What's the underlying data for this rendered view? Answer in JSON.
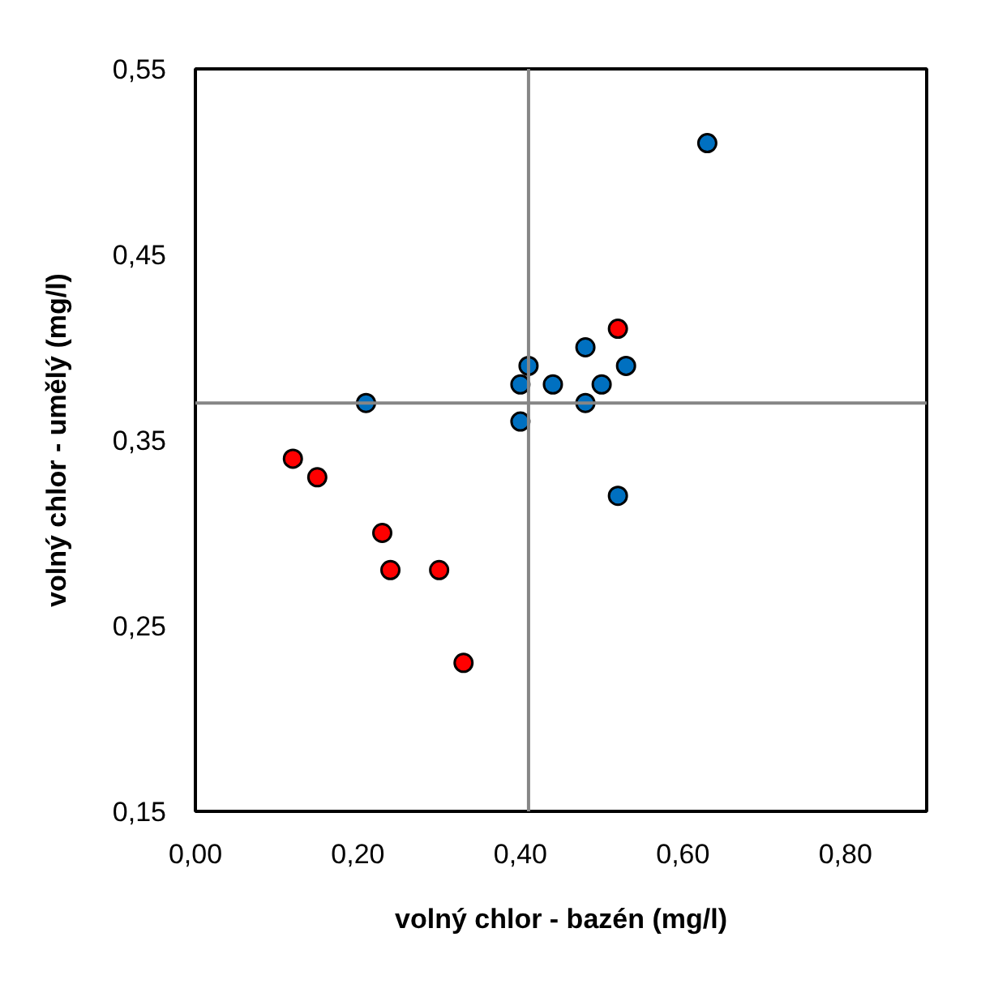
{
  "chart_data": {
    "type": "scatter",
    "xlabel": "volný chlor - bazén (mg/l)",
    "ylabel": "volný chlor - umělý (mg/l)",
    "xlim": [
      0,
      0.9
    ],
    "ylim": [
      0.15,
      0.55
    ],
    "xticks": [
      {
        "value": 0,
        "label": "0,00"
      },
      {
        "value": 0.2,
        "label": "0,20"
      },
      {
        "value": 0.4,
        "label": "0,40"
      },
      {
        "value": 0.6,
        "label": "0,60"
      },
      {
        "value": 0.8,
        "label": "0,80"
      }
    ],
    "yticks": [
      {
        "value": 0.15,
        "label": "0,15"
      },
      {
        "value": 0.25,
        "label": "0,25"
      },
      {
        "value": 0.35,
        "label": "0,35"
      },
      {
        "value": 0.45,
        "label": "0,45"
      },
      {
        "value": 0.55,
        "label": "0,55"
      }
    ],
    "grid": false,
    "marker": "circle",
    "ref_lines": [
      {
        "axis": "x",
        "value": 0.41,
        "color": "#868686"
      },
      {
        "axis": "y",
        "value": 0.37,
        "color": "#868686"
      }
    ],
    "series": [
      {
        "color": "#0070c0",
        "x": [
          0.63,
          0.48,
          0.41,
          0.53,
          0.4,
          0.44,
          0.5,
          0.21,
          0.48,
          0.4,
          0.52
        ],
        "values": [
          0.51,
          0.4,
          0.39,
          0.39,
          0.38,
          0.38,
          0.38,
          0.37,
          0.37,
          0.36,
          0.32
        ]
      },
      {
        "color": "#ff0000",
        "x": [
          0.52,
          0.12,
          0.15,
          0.23,
          0.24,
          0.3,
          0.33
        ],
        "values": [
          0.41,
          0.34,
          0.33,
          0.3,
          0.28,
          0.28,
          0.23
        ]
      }
    ]
  }
}
